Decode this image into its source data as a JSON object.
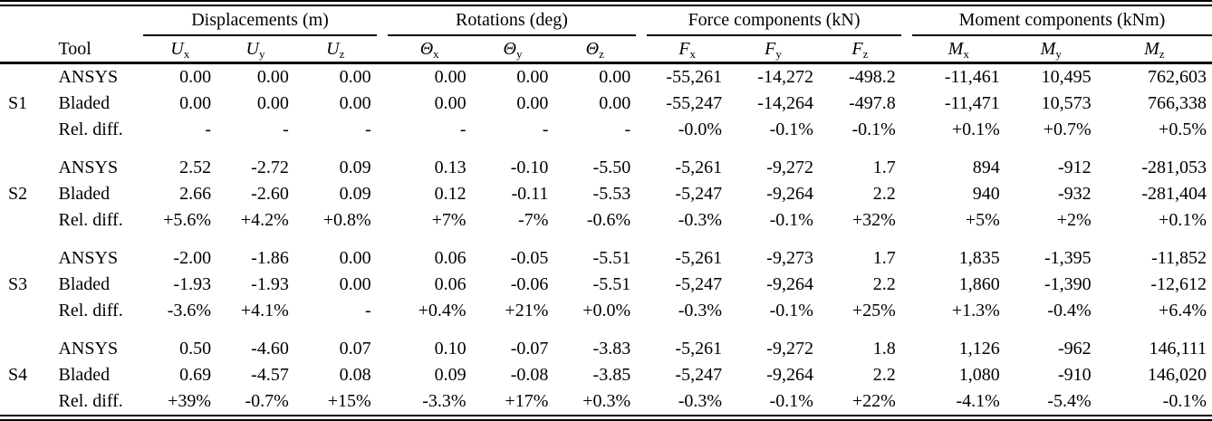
{
  "colors": {
    "text": "#000000",
    "background": "#ffffff",
    "rule": "#000000"
  },
  "table": {
    "tool_header": "Tool",
    "groups": [
      {
        "label": "Displacements (m)",
        "cols": [
          {
            "base": "U",
            "sub": "x"
          },
          {
            "base": "U",
            "sub": "y"
          },
          {
            "base": "U",
            "sub": "z"
          }
        ]
      },
      {
        "label": "Rotations (deg)",
        "cols": [
          {
            "base": "Θ",
            "sub": "x"
          },
          {
            "base": "Θ",
            "sub": "y"
          },
          {
            "base": "Θ",
            "sub": "z"
          }
        ]
      },
      {
        "label": "Force components (kN)",
        "cols": [
          {
            "base": "F",
            "sub": "x"
          },
          {
            "base": "F",
            "sub": "y"
          },
          {
            "base": "F",
            "sub": "z"
          }
        ]
      },
      {
        "label": "Moment components (kNm)",
        "cols": [
          {
            "base": "M",
            "sub": "x"
          },
          {
            "base": "M",
            "sub": "y"
          },
          {
            "base": "M",
            "sub": "z"
          }
        ]
      }
    ],
    "sections": [
      {
        "id": "S1",
        "rows": [
          {
            "tool": "ANSYS",
            "values": [
              "0.00",
              "0.00",
              "0.00",
              "0.00",
              "0.00",
              "0.00",
              "-55,261",
              "-14,272",
              "-498.2",
              "-11,461",
              "10,495",
              "762,603"
            ]
          },
          {
            "tool": "Bladed",
            "values": [
              "0.00",
              "0.00",
              "0.00",
              "0.00",
              "0.00",
              "0.00",
              "-55,247",
              "-14,264",
              "-497.8",
              "-11,471",
              "10,573",
              "766,338"
            ]
          },
          {
            "tool": "Rel. diff.",
            "values": [
              "-",
              "-",
              "-",
              "-",
              "-",
              "-",
              "-0.0%",
              "-0.1%",
              "-0.1%",
              "+0.1%",
              "+0.7%",
              "+0.5%"
            ]
          }
        ]
      },
      {
        "id": "S2",
        "rows": [
          {
            "tool": "ANSYS",
            "values": [
              "2.52",
              "-2.72",
              "0.09",
              "0.13",
              "-0.10",
              "-5.50",
              "-5,261",
              "-9,272",
              "1.7",
              "894",
              "-912",
              "-281,053"
            ]
          },
          {
            "tool": "Bladed",
            "values": [
              "2.66",
              "-2.60",
              "0.09",
              "0.12",
              "-0.11",
              "-5.53",
              "-5,247",
              "-9,264",
              "2.2",
              "940",
              "-932",
              "-281,404"
            ]
          },
          {
            "tool": "Rel. diff.",
            "values": [
              "+5.6%",
              "+4.2%",
              "+0.8%",
              "+7%",
              "-7%",
              "-0.6%",
              "-0.3%",
              "-0.1%",
              "+32%",
              "+5%",
              "+2%",
              "+0.1%"
            ]
          }
        ]
      },
      {
        "id": "S3",
        "rows": [
          {
            "tool": "ANSYS",
            "values": [
              "-2.00",
              "-1.86",
              "0.00",
              "0.06",
              "-0.05",
              "-5.51",
              "-5,261",
              "-9,273",
              "1.7",
              "1,835",
              "-1,395",
              "-11,852"
            ]
          },
          {
            "tool": "Bladed",
            "values": [
              "-1.93",
              "-1.93",
              "0.00",
              "0.06",
              "-0.06",
              "-5.51",
              "-5,247",
              "-9,264",
              "2.2",
              "1,860",
              "-1,390",
              "-12,612"
            ]
          },
          {
            "tool": "Rel. diff.",
            "values": [
              "-3.6%",
              "+4.1%",
              "-",
              "+0.4%",
              "+21%",
              "+0.0%",
              "-0.3%",
              "-0.1%",
              "+25%",
              "+1.3%",
              "-0.4%",
              "+6.4%"
            ]
          }
        ]
      },
      {
        "id": "S4",
        "rows": [
          {
            "tool": "ANSYS",
            "values": [
              "0.50",
              "-4.60",
              "0.07",
              "0.10",
              "-0.07",
              "-3.83",
              "-5,261",
              "-9,272",
              "1.8",
              "1,126",
              "-962",
              "146,111"
            ]
          },
          {
            "tool": "Bladed",
            "values": [
              "0.69",
              "-4.57",
              "0.08",
              "0.09",
              "-0.08",
              "-3.85",
              "-5,247",
              "-9,264",
              "2.2",
              "1,080",
              "-910",
              "146,020"
            ]
          },
          {
            "tool": "Rel. diff.",
            "values": [
              "+39%",
              "-0.7%",
              "+15%",
              "-3.3%",
              "+17%",
              "+0.3%",
              "-0.3%",
              "-0.1%",
              "+22%",
              "-4.1%",
              "-5.4%",
              "-0.1%"
            ]
          }
        ]
      }
    ]
  }
}
